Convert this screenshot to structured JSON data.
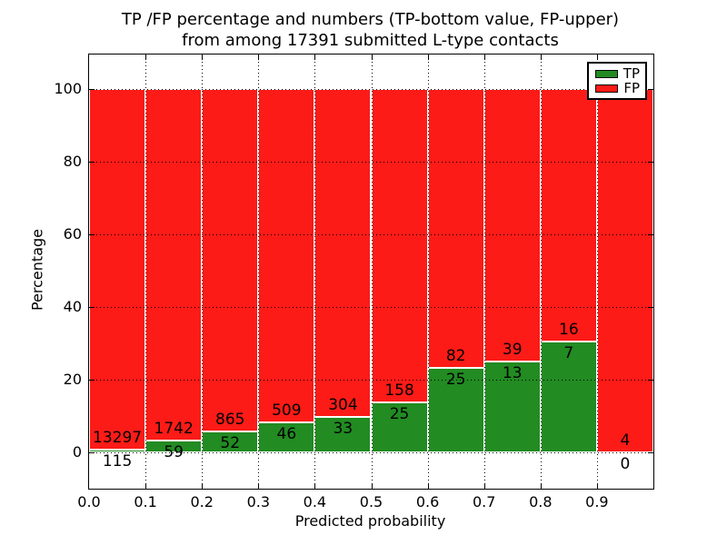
{
  "figure": {
    "title_line1": "TP /FP percentage and numbers (TP-bottom value, FP-upper)",
    "title_line2": "from among 17391 submitted L-type contacts"
  },
  "axes": {
    "xlabel": "Predicted probability",
    "ylabel": "Percentage",
    "x_tick_labels": [
      "0.0",
      "0.1",
      "0.2",
      "0.3",
      "0.4",
      "0.5",
      "0.6",
      "0.7",
      "0.8",
      "0.9"
    ],
    "y_tick_labels": [
      "0",
      "20",
      "40",
      "60",
      "80",
      "100"
    ],
    "y_tick_values": [
      0,
      20,
      40,
      60,
      80,
      100
    ],
    "xlim": [
      0.0,
      1.0
    ],
    "ylim": [
      -10,
      110
    ],
    "grid_style": "dotted-black"
  },
  "legend": {
    "position": "upper-right",
    "items": [
      {
        "label": "TP",
        "color": "#228b22"
      },
      {
        "label": "FP",
        "color": "#fc1b17"
      }
    ]
  },
  "colors": {
    "tp_green": "#228b22",
    "fp_red": "#fc1b17",
    "background": "#ffffff",
    "bar_edge": "#ffffff",
    "text": "#000000"
  },
  "chart_data": {
    "type": "bar",
    "stacked": true,
    "percent_normalized": true,
    "title": "TP /FP percentage and numbers (TP-bottom value, FP-upper) from among 17391 submitted L-type contacts",
    "xlabel": "Predicted probability",
    "ylabel": "Percentage",
    "total_contacts": 17391,
    "bin_edges": [
      0.0,
      0.1,
      0.2,
      0.3,
      0.4,
      0.5,
      0.6,
      0.7,
      0.8,
      0.9,
      1.0
    ],
    "series": [
      {
        "name": "TP",
        "color": "#228b22",
        "counts": [
          115,
          59,
          52,
          46,
          33,
          25,
          25,
          13,
          7,
          0
        ]
      },
      {
        "name": "FP",
        "color": "#fc1b17",
        "counts": [
          13297,
          1742,
          865,
          509,
          304,
          158,
          82,
          39,
          16,
          4
        ]
      }
    ],
    "tp_percent_of_bin": [
      0.86,
      3.28,
      5.67,
      8.29,
      9.79,
      13.66,
      23.36,
      25.0,
      30.43,
      0.0
    ],
    "fp_percent_of_bin": [
      99.14,
      96.72,
      94.33,
      91.71,
      90.21,
      86.34,
      76.64,
      75.0,
      69.57,
      100.0
    ],
    "ylim": [
      -10,
      110
    ],
    "grid": true,
    "legend_position": "upper-right"
  }
}
